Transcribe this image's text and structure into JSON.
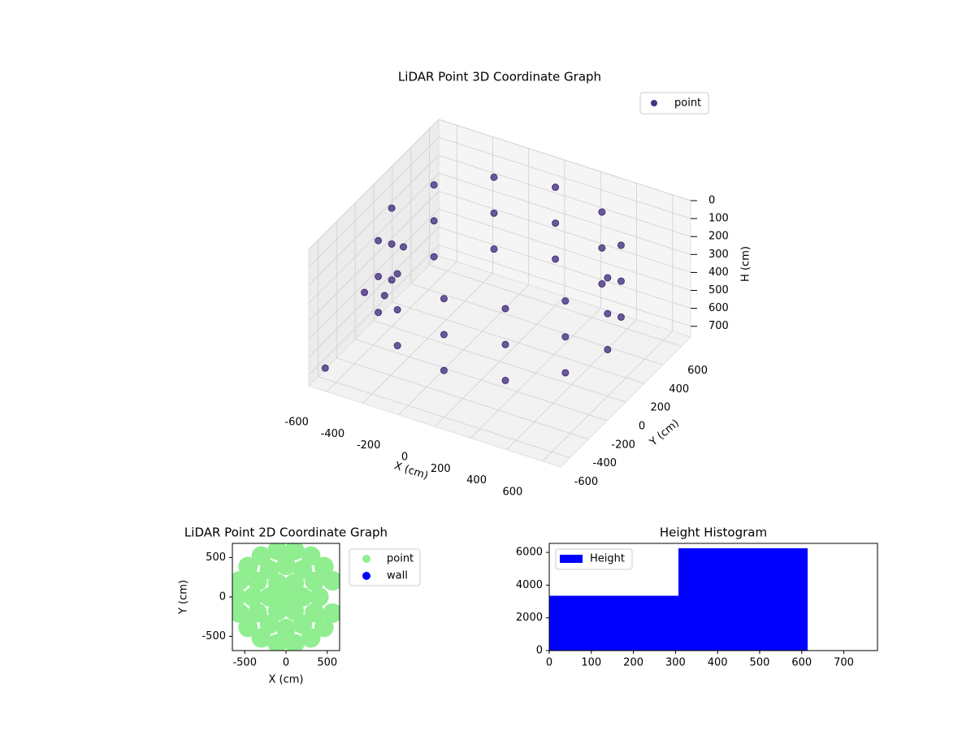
{
  "chart_data": [
    {
      "type": "scatter3d",
      "title": "LiDAR Point 3D Coordinate Graph",
      "x_label": "X (cm)",
      "y_label": "Y (cm)",
      "z_label": "H (cm)",
      "series": [
        {
          "name": "point",
          "color": "#46327e",
          "x": [
            600,
            520,
            300,
            0,
            -300,
            -520,
            -600,
            -520,
            -300,
            0,
            300,
            520,
            600,
            520,
            300,
            0,
            -300,
            -520,
            -600,
            -520,
            -300,
            0,
            300,
            520,
            600,
            520,
            300,
            0,
            -300,
            -520,
            -600,
            -520,
            -300,
            0,
            300,
            520,
            -690,
            -700,
            -640,
            -660
          ],
          "y": [
            0,
            300,
            520,
            600,
            520,
            300,
            0,
            -300,
            -520,
            -600,
            -520,
            -300,
            0,
            300,
            520,
            600,
            520,
            300,
            0,
            -300,
            -520,
            -600,
            -520,
            -300,
            0,
            300,
            520,
            600,
            520,
            300,
            0,
            -300,
            -520,
            -600,
            -520,
            -300,
            300,
            -100,
            0,
            -600
          ],
          "z": [
            100,
            100,
            100,
            100,
            100,
            100,
            100,
            100,
            100,
            100,
            100,
            100,
            300,
            300,
            300,
            300,
            300,
            300,
            300,
            300,
            300,
            300,
            300,
            300,
            500,
            500,
            500,
            500,
            500,
            500,
            500,
            500,
            500,
            500,
            500,
            500,
            500,
            550,
            600,
            700
          ]
        }
      ],
      "xlim": [
        -700,
        700
      ],
      "ylim": [
        -700,
        700
      ],
      "zlim": [
        760,
        0
      ],
      "xticks": [
        -600,
        -400,
        -200,
        0,
        200,
        400,
        600
      ],
      "yticks": [
        -600,
        -400,
        -200,
        0,
        200,
        400,
        600
      ],
      "zticks": [
        0,
        100,
        200,
        300,
        400,
        500,
        600,
        700
      ],
      "legend": "upper right"
    },
    {
      "type": "scatter",
      "title": "LiDAR Point 2D Coordinate Graph",
      "x_label": "X (cm)",
      "y_label": "Y (cm)",
      "series": [
        {
          "name": "point",
          "color": "#90ee90",
          "x": [
            0,
            200,
            100,
            -100,
            -200,
            -100,
            100,
            400,
            346,
            200,
            0,
            -200,
            -346,
            -400,
            -346,
            -200,
            0,
            200,
            346,
            564,
            460,
            300,
            104,
            -104,
            -300,
            -460,
            -564,
            -600,
            -564,
            -460,
            -300,
            -104,
            104,
            300,
            460,
            564
          ],
          "y": [
            0,
            0,
            173,
            173,
            0,
            -173,
            -173,
            0,
            200,
            346,
            400,
            346,
            200,
            0,
            -200,
            -346,
            -400,
            -346,
            -200,
            205,
            386,
            520,
            591,
            591,
            520,
            386,
            205,
            0,
            -205,
            -386,
            -520,
            -591,
            -591,
            -520,
            -386,
            -205
          ]
        },
        {
          "name": "wall",
          "color": "#0000ff",
          "x": [],
          "y": []
        }
      ],
      "xlim": [
        -650,
        650
      ],
      "ylim": [
        -680,
        680
      ],
      "xticks": [
        -500,
        0,
        500
      ],
      "yticks": [
        -500,
        0,
        500
      ],
      "legend": "outside upper right"
    },
    {
      "type": "histogram",
      "title": "Height Histogram",
      "series": [
        {
          "name": "Height",
          "color": "#0000ff",
          "bins": [
            0,
            307,
            614
          ],
          "counts": [
            3350,
            6250
          ]
        }
      ],
      "xlim": [
        0,
        780
      ],
      "ylim": [
        0,
        6550
      ],
      "xticks": [
        0,
        100,
        200,
        300,
        400,
        500,
        600,
        700
      ],
      "yticks": [
        0,
        2000,
        4000,
        6000
      ],
      "legend": "upper left"
    }
  ]
}
